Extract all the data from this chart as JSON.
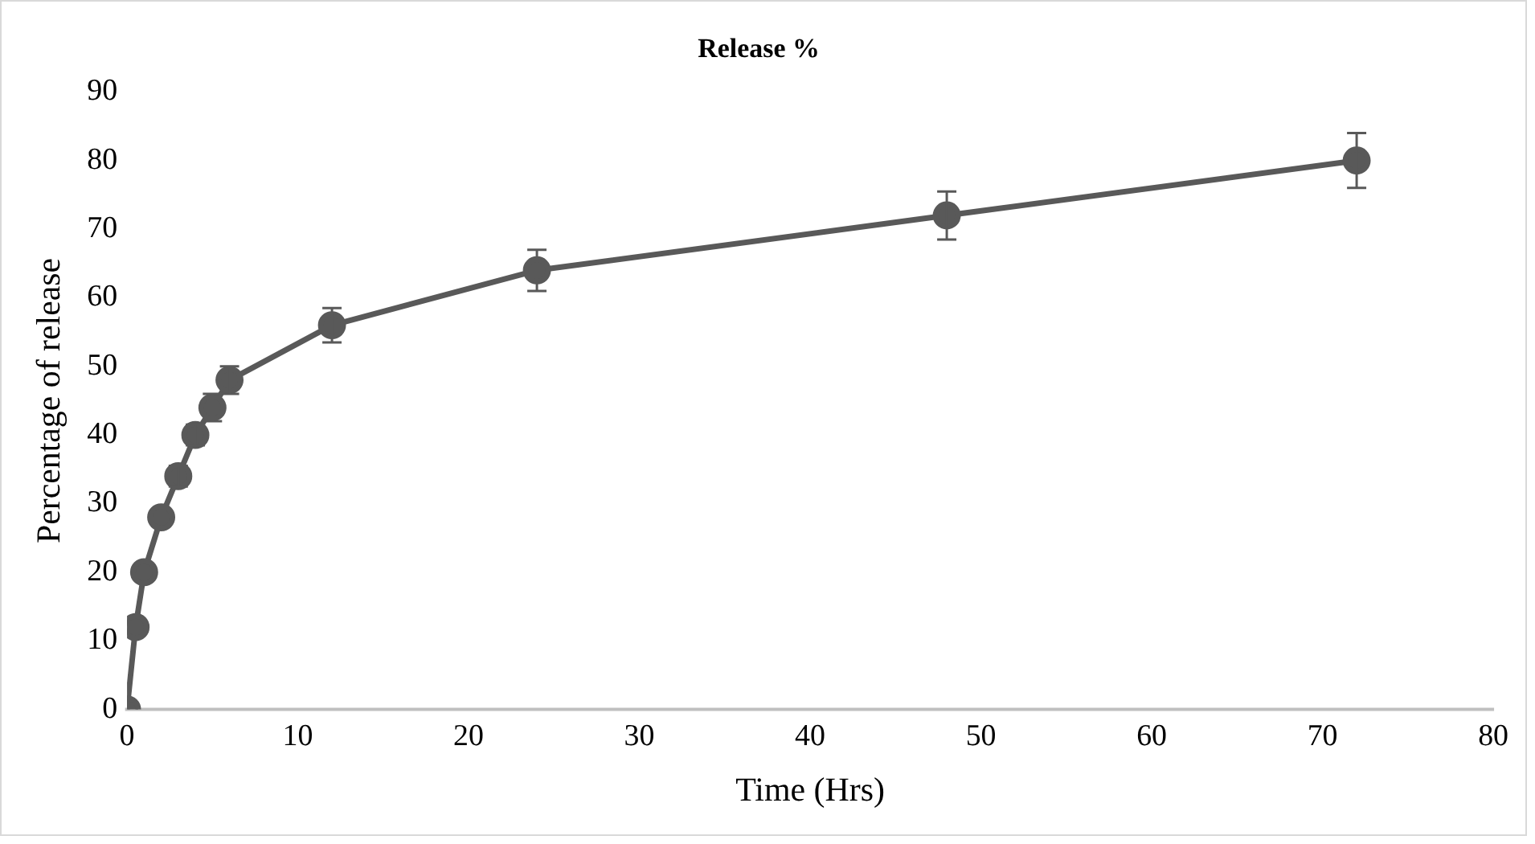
{
  "chart_data": {
    "type": "line",
    "title": "Release %",
    "xlabel": "Time (Hrs)",
    "ylabel": "Percentage of release",
    "x": [
      0,
      0.5,
      1,
      2,
      3,
      4,
      5,
      6,
      12,
      24,
      48,
      72
    ],
    "series": [
      {
        "color": "#595959",
        "values": [
          0,
          12,
          20,
          28,
          34,
          40,
          44,
          48,
          56,
          64,
          72,
          80
        ],
        "errors": [
          null,
          null,
          null,
          null,
          1.5,
          1.5,
          2,
          2,
          2.5,
          3,
          3.5,
          4
        ]
      }
    ],
    "xlim": [
      0,
      80
    ],
    "xticks": [
      0,
      10,
      20,
      30,
      40,
      50,
      60,
      70,
      80
    ],
    "ylim": [
      0,
      90
    ],
    "yticks": [
      0,
      10,
      20,
      30,
      40,
      50,
      60,
      70,
      80,
      90
    ],
    "grid": false,
    "legend": false,
    "marker": "circle",
    "line_style": "solid"
  }
}
